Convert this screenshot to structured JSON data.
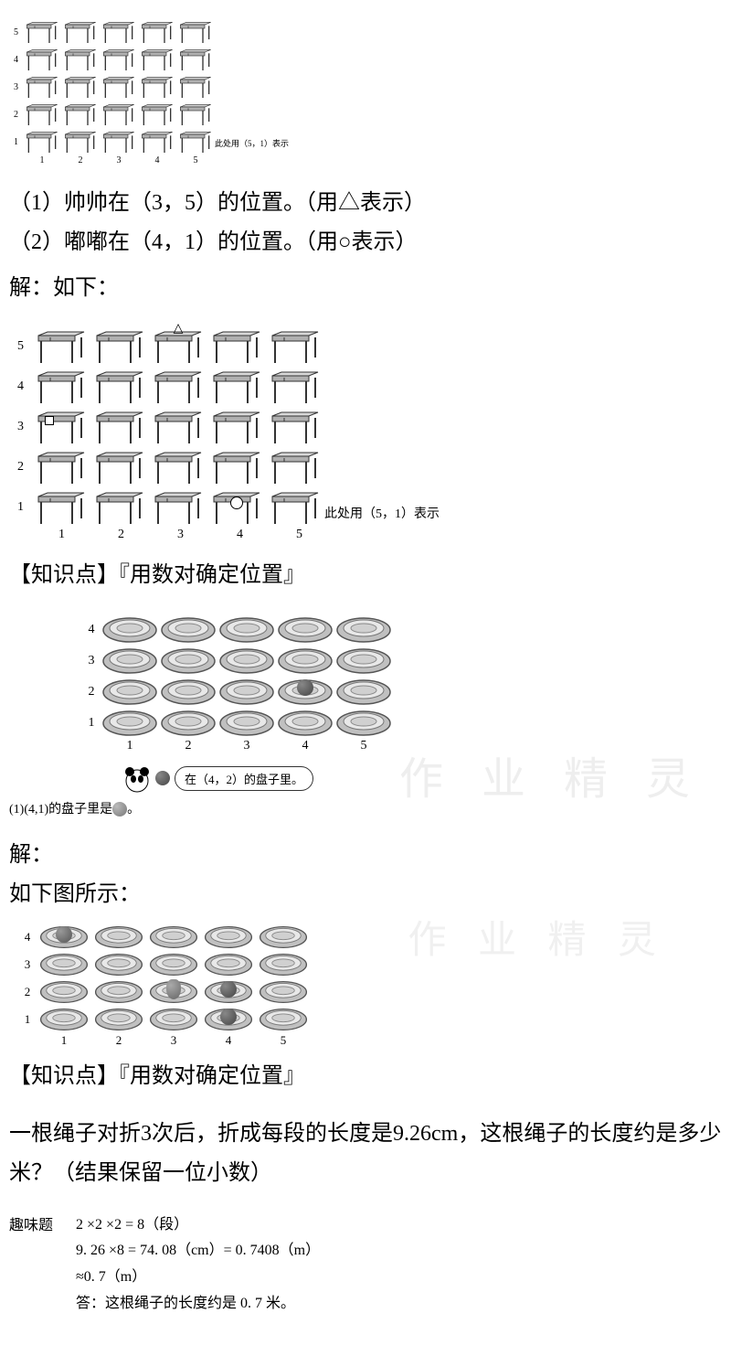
{
  "small_grid": {
    "rows": [
      "5",
      "4",
      "3",
      "2",
      "1"
    ],
    "cols": [
      "1",
      "2",
      "3",
      "4",
      "5"
    ],
    "annotation": "此处用（5，1）表示"
  },
  "q1": {
    "line1": "（1）帅帅在（3，5）的位置。（用△表示）",
    "line2": "（2）嘟嘟在（4，1）的位置。（用○表示）"
  },
  "solution1": {
    "header": "解：如下：",
    "rows": [
      "5",
      "4",
      "3",
      "2",
      "1"
    ],
    "cols": [
      "1",
      "2",
      "3",
      "4",
      "5"
    ],
    "annotation": "此处用（5，1）表示",
    "knowledge": "【知识点】『用数对确定位置』"
  },
  "plate_q": {
    "rows": [
      "4",
      "3",
      "2",
      "1"
    ],
    "cols": [
      "1",
      "2",
      "3",
      "4",
      "5"
    ],
    "speech_prefix": "在（4，2）的盘子里。",
    "sub_q": "(1)(4,1)的盘子里是"
  },
  "solution2": {
    "header": "解：",
    "sub": "如下图所示：",
    "rows": [
      "4",
      "3",
      "2",
      "1"
    ],
    "cols": [
      "1",
      "2",
      "3",
      "4",
      "5"
    ],
    "knowledge": "【知识点】『用数对确定位置』"
  },
  "q3": {
    "text": "一根绳子对折3次后，折成每段的长度是9.26cm，这根绳子的长度约是多少米？（结果保留一位小数）"
  },
  "answer3": {
    "label": "趣味题",
    "line1": "2 ×2 ×2 = 8（段）",
    "line2": "9. 26 ×8 = 74. 08（cm）= 0. 7408（m）",
    "line3": "≈0. 7（m）",
    "line4": "答：这根绳子的长度约是 0. 7 米。"
  },
  "watermarks": {
    "w1": "作 业 精 灵",
    "w2": "作 业 精 灵"
  },
  "colors": {
    "desk_fill": "#d0d0d0",
    "desk_stroke": "#333",
    "plate_fill": "#c8c8c8",
    "plate_stroke": "#555"
  }
}
